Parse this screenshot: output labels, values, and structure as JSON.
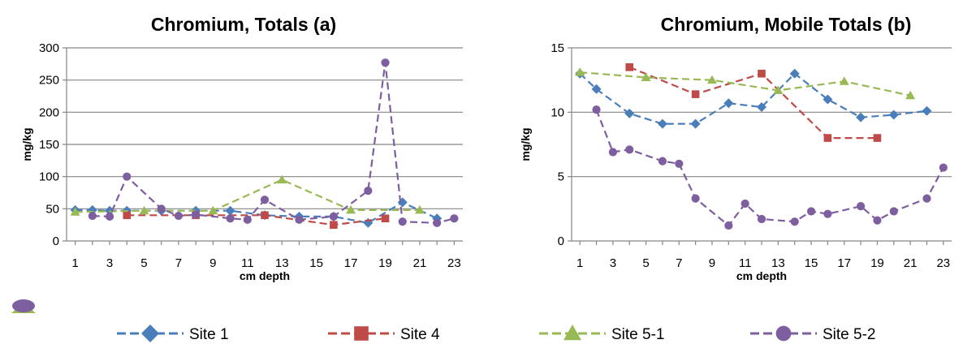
{
  "chart_data": [
    {
      "type": "line",
      "title": "Chromium, Totals (a)",
      "xlabel": "cm depth",
      "ylabel": "mg/kg",
      "xlim": [
        1,
        23
      ],
      "ylim": [
        0,
        300
      ],
      "xticks": [
        "1",
        "3",
        "5",
        "7",
        "9",
        "11",
        "13",
        "15",
        "17",
        "19",
        "21",
        "23"
      ],
      "yticks": [
        "0",
        "50",
        "100",
        "150",
        "200",
        "250",
        "300"
      ],
      "grid": "horizontal",
      "series": [
        {
          "name": "Site 1",
          "color": "#4a7ebb",
          "marker": "diamond",
          "points": [
            [
              1,
              48
            ],
            [
              2,
              48
            ],
            [
              3,
              47
            ],
            [
              4,
              47
            ],
            [
              6,
              47
            ],
            [
              8,
              47
            ],
            [
              10,
              47
            ],
            [
              12,
              40
            ],
            [
              14,
              38
            ],
            [
              16,
              38
            ],
            [
              18,
              28
            ],
            [
              20,
              60
            ],
            [
              22,
              35
            ]
          ]
        },
        {
          "name": "Site 4",
          "color": "#be4b48",
          "marker": "square",
          "points": [
            [
              4,
              40
            ],
            [
              8,
              40
            ],
            [
              12,
              40
            ],
            [
              16,
              25
            ],
            [
              19,
              35
            ]
          ]
        },
        {
          "name": "Site 5-1",
          "color": "#98b954",
          "marker": "triangle",
          "points": [
            [
              1,
              45
            ],
            [
              5,
              47
            ],
            [
              9,
              47
            ],
            [
              13,
              95
            ],
            [
              17,
              48
            ],
            [
              21,
              48
            ]
          ]
        },
        {
          "name": "Site 5-2",
          "color": "#7d5fa0",
          "marker": "circle",
          "points": [
            [
              2,
              39
            ],
            [
              3,
              38
            ],
            [
              4,
              100
            ],
            [
              6,
              50
            ],
            [
              7,
              39
            ],
            [
              8,
              41
            ],
            [
              10,
              35
            ],
            [
              11,
              33
            ],
            [
              12,
              64
            ],
            [
              14,
              33
            ],
            [
              16,
              38
            ],
            [
              18,
              78
            ],
            [
              19,
              277
            ],
            [
              20,
              30
            ],
            [
              22,
              28
            ],
            [
              23,
              35
            ]
          ]
        }
      ]
    },
    {
      "type": "line",
      "title": "Chromium, Mobile Totals (b)",
      "xlabel": "cm depth",
      "ylabel": "mg/kg",
      "xlim": [
        1,
        23
      ],
      "ylim": [
        0,
        15
      ],
      "xticks": [
        "1",
        "3",
        "5",
        "7",
        "9",
        "11",
        "13",
        "15",
        "17",
        "19",
        "21",
        "23"
      ],
      "yticks": [
        "0",
        "5",
        "10",
        "15"
      ],
      "grid": "horizontal",
      "series": [
        {
          "name": "Site 1",
          "color": "#4a7ebb",
          "marker": "diamond",
          "points": [
            [
              1,
              13
            ],
            [
              2,
              11.8
            ],
            [
              4,
              9.9
            ],
            [
              6,
              9.1
            ],
            [
              8,
              9.1
            ],
            [
              10,
              10.7
            ],
            [
              12,
              10.4
            ],
            [
              14,
              13
            ],
            [
              16,
              11
            ],
            [
              18,
              9.6
            ],
            [
              20,
              9.8
            ],
            [
              22,
              10.1
            ]
          ]
        },
        {
          "name": "Site 4",
          "color": "#be4b48",
          "marker": "square",
          "points": [
            [
              4,
              13.5
            ],
            [
              8,
              11.4
            ],
            [
              12,
              13
            ],
            [
              16,
              8
            ],
            [
              19,
              8
            ]
          ]
        },
        {
          "name": "Site 5-1",
          "color": "#98b954",
          "marker": "triangle",
          "points": [
            [
              1,
              13.1
            ],
            [
              5,
              12.7
            ],
            [
              9,
              12.5
            ],
            [
              13,
              11.7
            ],
            [
              17,
              12.4
            ],
            [
              21,
              11.3
            ]
          ]
        },
        {
          "name": "Site 5-2",
          "color": "#7d5fa0",
          "marker": "circle",
          "points": [
            [
              2,
              10.2
            ],
            [
              3,
              6.9
            ],
            [
              4,
              7.1
            ],
            [
              6,
              6.2
            ],
            [
              7,
              6
            ],
            [
              8,
              3.3
            ],
            [
              10,
              1.2
            ],
            [
              11,
              2.9
            ],
            [
              12,
              1.7
            ],
            [
              14,
              1.5
            ],
            [
              15,
              2.3
            ],
            [
              16,
              2.1
            ],
            [
              18,
              2.7
            ],
            [
              19,
              1.6
            ],
            [
              20,
              2.3
            ],
            [
              22,
              3.3
            ],
            [
              23,
              5.7
            ]
          ]
        }
      ]
    }
  ],
  "legend": {
    "position": "bottom",
    "items": [
      {
        "name": "Site 1",
        "color": "#4a7ebb",
        "marker": "diamond"
      },
      {
        "name": "Site 4",
        "color": "#be4b48",
        "marker": "square"
      },
      {
        "name": "Site 5-1",
        "color": "#98b954",
        "marker": "triangle"
      },
      {
        "name": "Site 5-2",
        "color": "#7d5fa0",
        "marker": "circle"
      }
    ]
  },
  "stray_legend_marker": {
    "icon": "stacked-triangle-circle-marker"
  }
}
